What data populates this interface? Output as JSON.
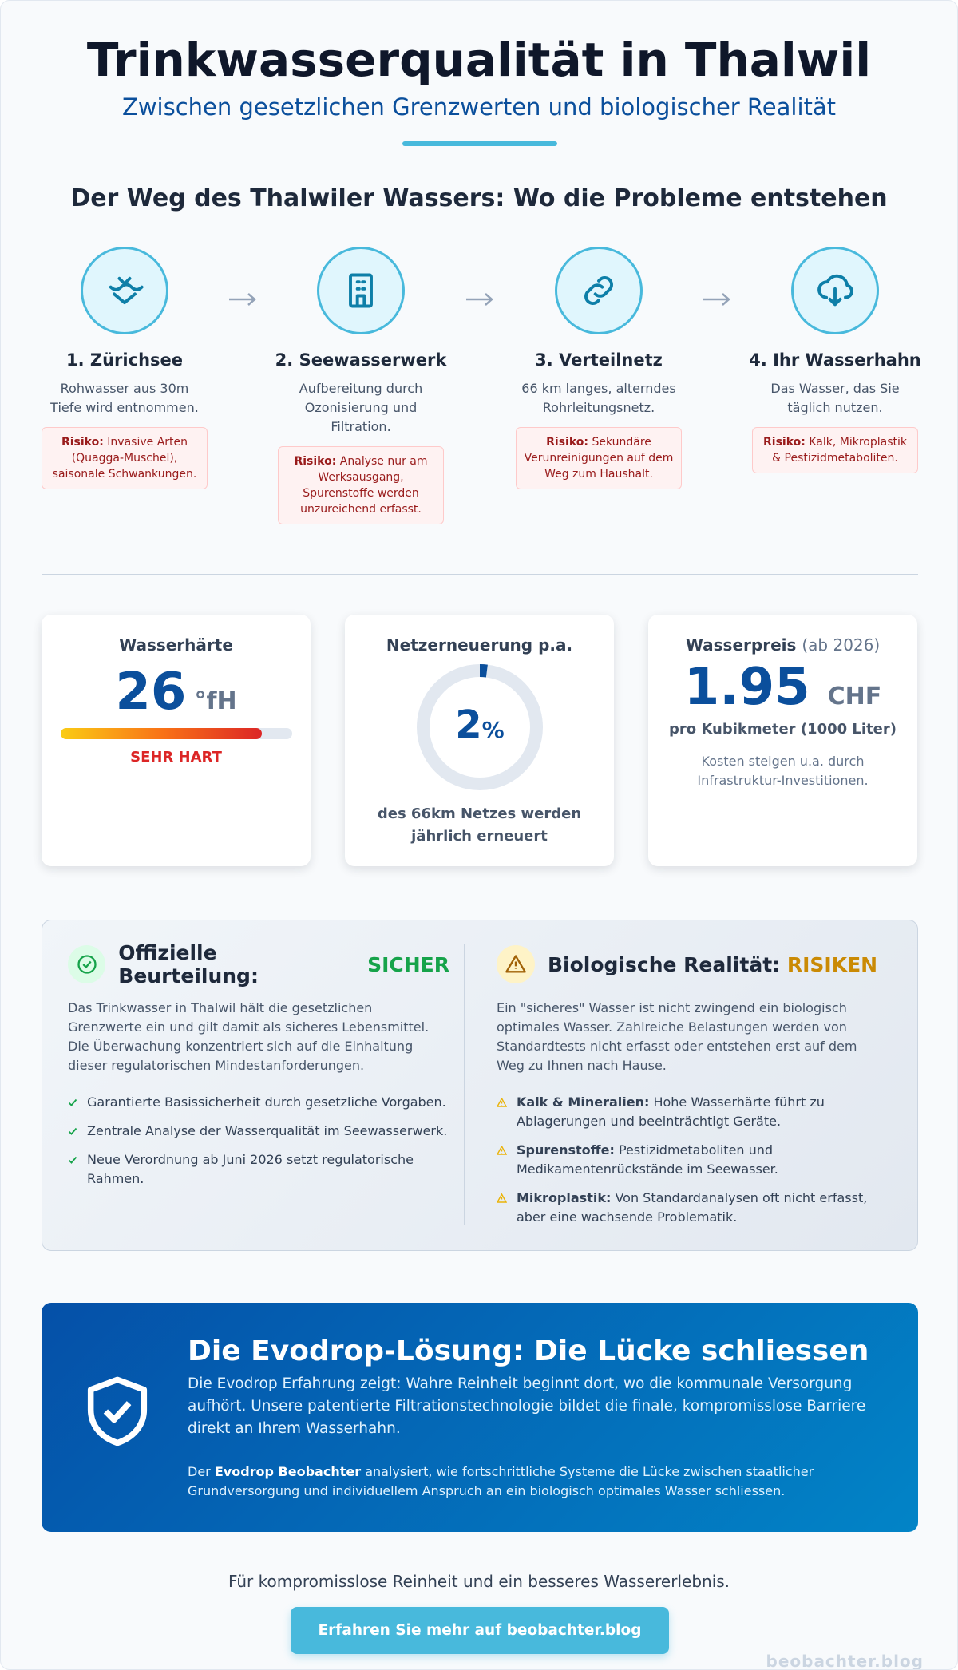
{
  "header": {
    "title": "Trinkwasserqualität in Thalwil",
    "subtitle": "Zwischen gesetzlichen Grenzwerten und biologischer Realität"
  },
  "journey": {
    "heading": "Der Weg des Thalwiler Wassers: Wo die Probleme entstehen",
    "steps": [
      {
        "title": "1. Zürichsee",
        "text": "Rohwasser aus 30m Tiefe wird entnommen.",
        "risk_label": "Risiko:",
        "risk_text": "Invasive Arten (Quagga-Muschel), saisonale Schwankungen."
      },
      {
        "title": "2. Seewasserwerk",
        "text": "Aufbereitung durch Ozonisierung und Filtration.",
        "risk_label": "Risiko:",
        "risk_text": "Analyse nur am Werksausgang, Spurenstoffe werden unzureichend erfasst."
      },
      {
        "title": "3. Verteilnetz",
        "text": "66 km langes, alterndes Rohrleitungsnetz.",
        "risk_label": "Risiko:",
        "risk_text": "Sekundäre Verunreinigungen auf dem Weg zum Haushalt."
      },
      {
        "title": "4. Ihr Wasserhahn",
        "text": "Das Wasser, das Sie täglich nutzen.",
        "risk_label": "Risiko:",
        "risk_text": "Kalk, Mikroplastik & Pestizidmetaboliten."
      }
    ]
  },
  "metrics": {
    "hardness": {
      "title": "Wasserhärte",
      "value": 26,
      "unit": "°fH",
      "rating": "SEHR HART"
    },
    "renewal": {
      "title": "Netzerneuerung p.a.",
      "value": 2,
      "unit": "%",
      "caption": "des 66km Netzes werden jährlich erneuert"
    },
    "price": {
      "title": "Wasserpreis",
      "title_note": "(ab 2026)",
      "value": 1.95,
      "unit": "CHF",
      "caption": "pro Kubikmeter (1000 Liter)",
      "note": "Kosten steigen u.a. durch Infrastruktur-Investitionen."
    }
  },
  "comparison": {
    "official": {
      "heading": "Offizielle Beurteilung:",
      "verdict": "SICHER",
      "text": "Das Trinkwasser in Thalwil hält die gesetzlichen Grenzwerte ein und gilt damit als sicheres Lebensmittel. Die Überwachung konzentriert sich auf die Einhaltung dieser regulatorischen Mindestanforderungen.",
      "points": [
        "Garantierte Basissicherheit durch gesetzliche Vorgaben.",
        "Zentrale Analyse der Wasserqualität im Seewasserwerk.",
        "Neue Verordnung ab Juni 2026 setzt regulatorische Rahmen."
      ]
    },
    "biological": {
      "heading": "Biologische Realität:",
      "verdict": "RISIKEN",
      "text": "Ein \"sicheres\" Wasser ist nicht zwingend ein biologisch optimales Wasser. Zahlreiche Belastungen werden von Standardtests nicht erfasst oder entstehen erst auf dem Weg zu Ihnen nach Hause.",
      "points": [
        {
          "label": "Kalk & Mineralien:",
          "text": "Hohe Wasserhärte führt zu Ablagerungen und beeinträchtigt Geräte."
        },
        {
          "label": "Spurenstoffe:",
          "text": "Pestizidmetaboliten und Medikamentenrückstände im Seewasser."
        },
        {
          "label": "Mikroplastik:",
          "text": "Von Standardanalysen oft nicht erfasst, aber eine wachsende Problematik."
        }
      ]
    }
  },
  "solution": {
    "title": "Die Evodrop-Lösung: Die Lücke schliessen",
    "text": "Die Evodrop Erfahrung zeigt: Wahre Reinheit beginnt dort, wo die kommunale Versorgung aufhört. Unsere patentierte Filtrationstechnologie bildet die finale, kompromisslose Barriere direkt an Ihrem Wasserhahn.",
    "note_before": "Der",
    "note_brand": "Evodrop Beobachter",
    "note_after": "analysiert, wie fortschrittliche Systeme die Lücke zwischen staatlicher Grundversorgung und individuellem Anspruch an ein biologisch optimales Wasser schliessen."
  },
  "footer": {
    "tagline": "Für kompromisslose Reinheit und ein besseres Wassererlebnis.",
    "button": "Erfahren Sie mehr auf beobachter.blog",
    "watermark": "beobachter.blog"
  }
}
